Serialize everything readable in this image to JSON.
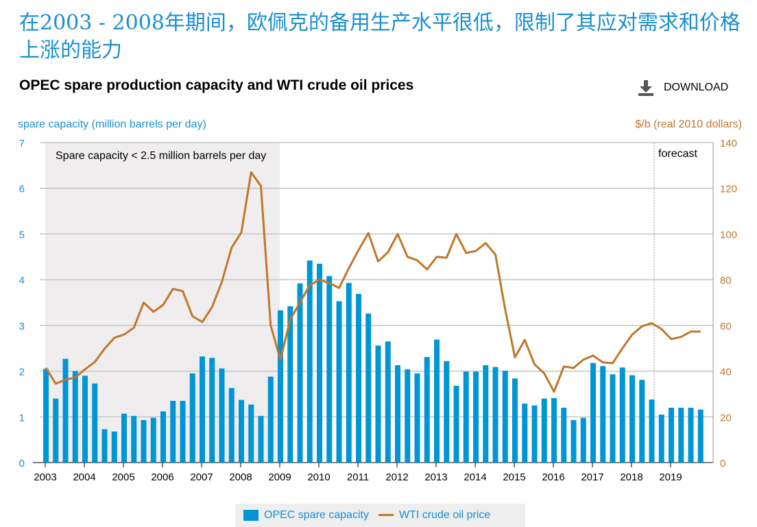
{
  "headline": "在2003 - 2008年期间，欧佩克的备用生产水平很低，限制了其应对需求和价格上涨的能力",
  "download_label": "DOWNLOAD",
  "colors": {
    "bars": "#0096d6",
    "line": "#c0762a",
    "shade": "#efeded",
    "headline": "#1a8fd0"
  },
  "chart_data": {
    "type": "bar+line",
    "title": "OPEC spare production capacity and WTI crude oil prices",
    "ylabel_left": "spare capacity (million barrels per day)",
    "ylabel_right": "$/b (real 2010 dollars)",
    "ylim_left": [
      0,
      7
    ],
    "ylim_right": [
      0,
      140
    ],
    "yticks_left": [
      "0",
      "1",
      "2",
      "3",
      "4",
      "5",
      "6",
      "7"
    ],
    "yticks_right": [
      "0",
      "20",
      "40",
      "60",
      "80",
      "100",
      "120",
      "140"
    ],
    "xticks": [
      "2003",
      "2004",
      "2005",
      "2006",
      "2007",
      "2008",
      "2009",
      "2010",
      "2011",
      "2012",
      "2013",
      "2014",
      "2015",
      "2016",
      "2017",
      "2018",
      "2019"
    ],
    "x_start": 2003,
    "x_step": 0.25,
    "grid": true,
    "legend_placement": "bottom",
    "shaded_region": {
      "from": 2003,
      "to": 2009,
      "label": "Spare capacity < 2.5 million barrels per day"
    },
    "forecast": {
      "from": 2018.58,
      "label": "forecast"
    },
    "series": [
      {
        "name": "OPEC spare capacity",
        "type": "bar",
        "axis": "left",
        "values": [
          2.05,
          1.4,
          2.27,
          2.0,
          1.9,
          1.73,
          0.73,
          0.68,
          1.07,
          1.02,
          0.93,
          0.98,
          1.12,
          1.35,
          1.35,
          1.95,
          2.32,
          2.29,
          2.06,
          1.63,
          1.37,
          1.27,
          1.02,
          1.88,
          3.33,
          3.42,
          3.92,
          4.42,
          4.35,
          4.08,
          3.53,
          3.93,
          3.69,
          3.26,
          2.56,
          2.65,
          2.13,
          2.04,
          1.95,
          2.31,
          2.69,
          2.22,
          1.68,
          1.99,
          1.99,
          2.13,
          2.09,
          2.01,
          1.84,
          1.29,
          1.25,
          1.4,
          1.41,
          1.2,
          0.93,
          0.98,
          2.18,
          2.11,
          1.93,
          2.08,
          1.91,
          1.81,
          1.38,
          1.05,
          1.2,
          1.2,
          1.2,
          1.16
        ]
      },
      {
        "name": "WTI crude oil price",
        "type": "line",
        "axis": "right",
        "values": [
          41.4,
          34.5,
          36.3,
          37.2,
          40.8,
          44,
          49.8,
          54.6,
          56,
          59,
          70,
          66,
          69,
          76,
          75,
          64,
          61.5,
          68,
          79,
          94,
          100.7,
          127,
          121,
          60,
          45,
          62.6,
          70,
          77.6,
          80,
          78.5,
          76.4,
          85,
          93,
          100.4,
          88,
          92,
          100,
          90,
          88.5,
          84.5,
          90,
          89.6,
          100,
          91.7,
          92.6,
          96,
          91,
          67,
          46,
          53.7,
          43,
          39,
          31,
          42,
          41.4,
          45,
          46.8,
          43.8,
          43.5,
          50,
          56,
          59.6,
          61,
          58.4,
          54,
          55,
          57.3,
          57.3
        ]
      }
    ]
  }
}
